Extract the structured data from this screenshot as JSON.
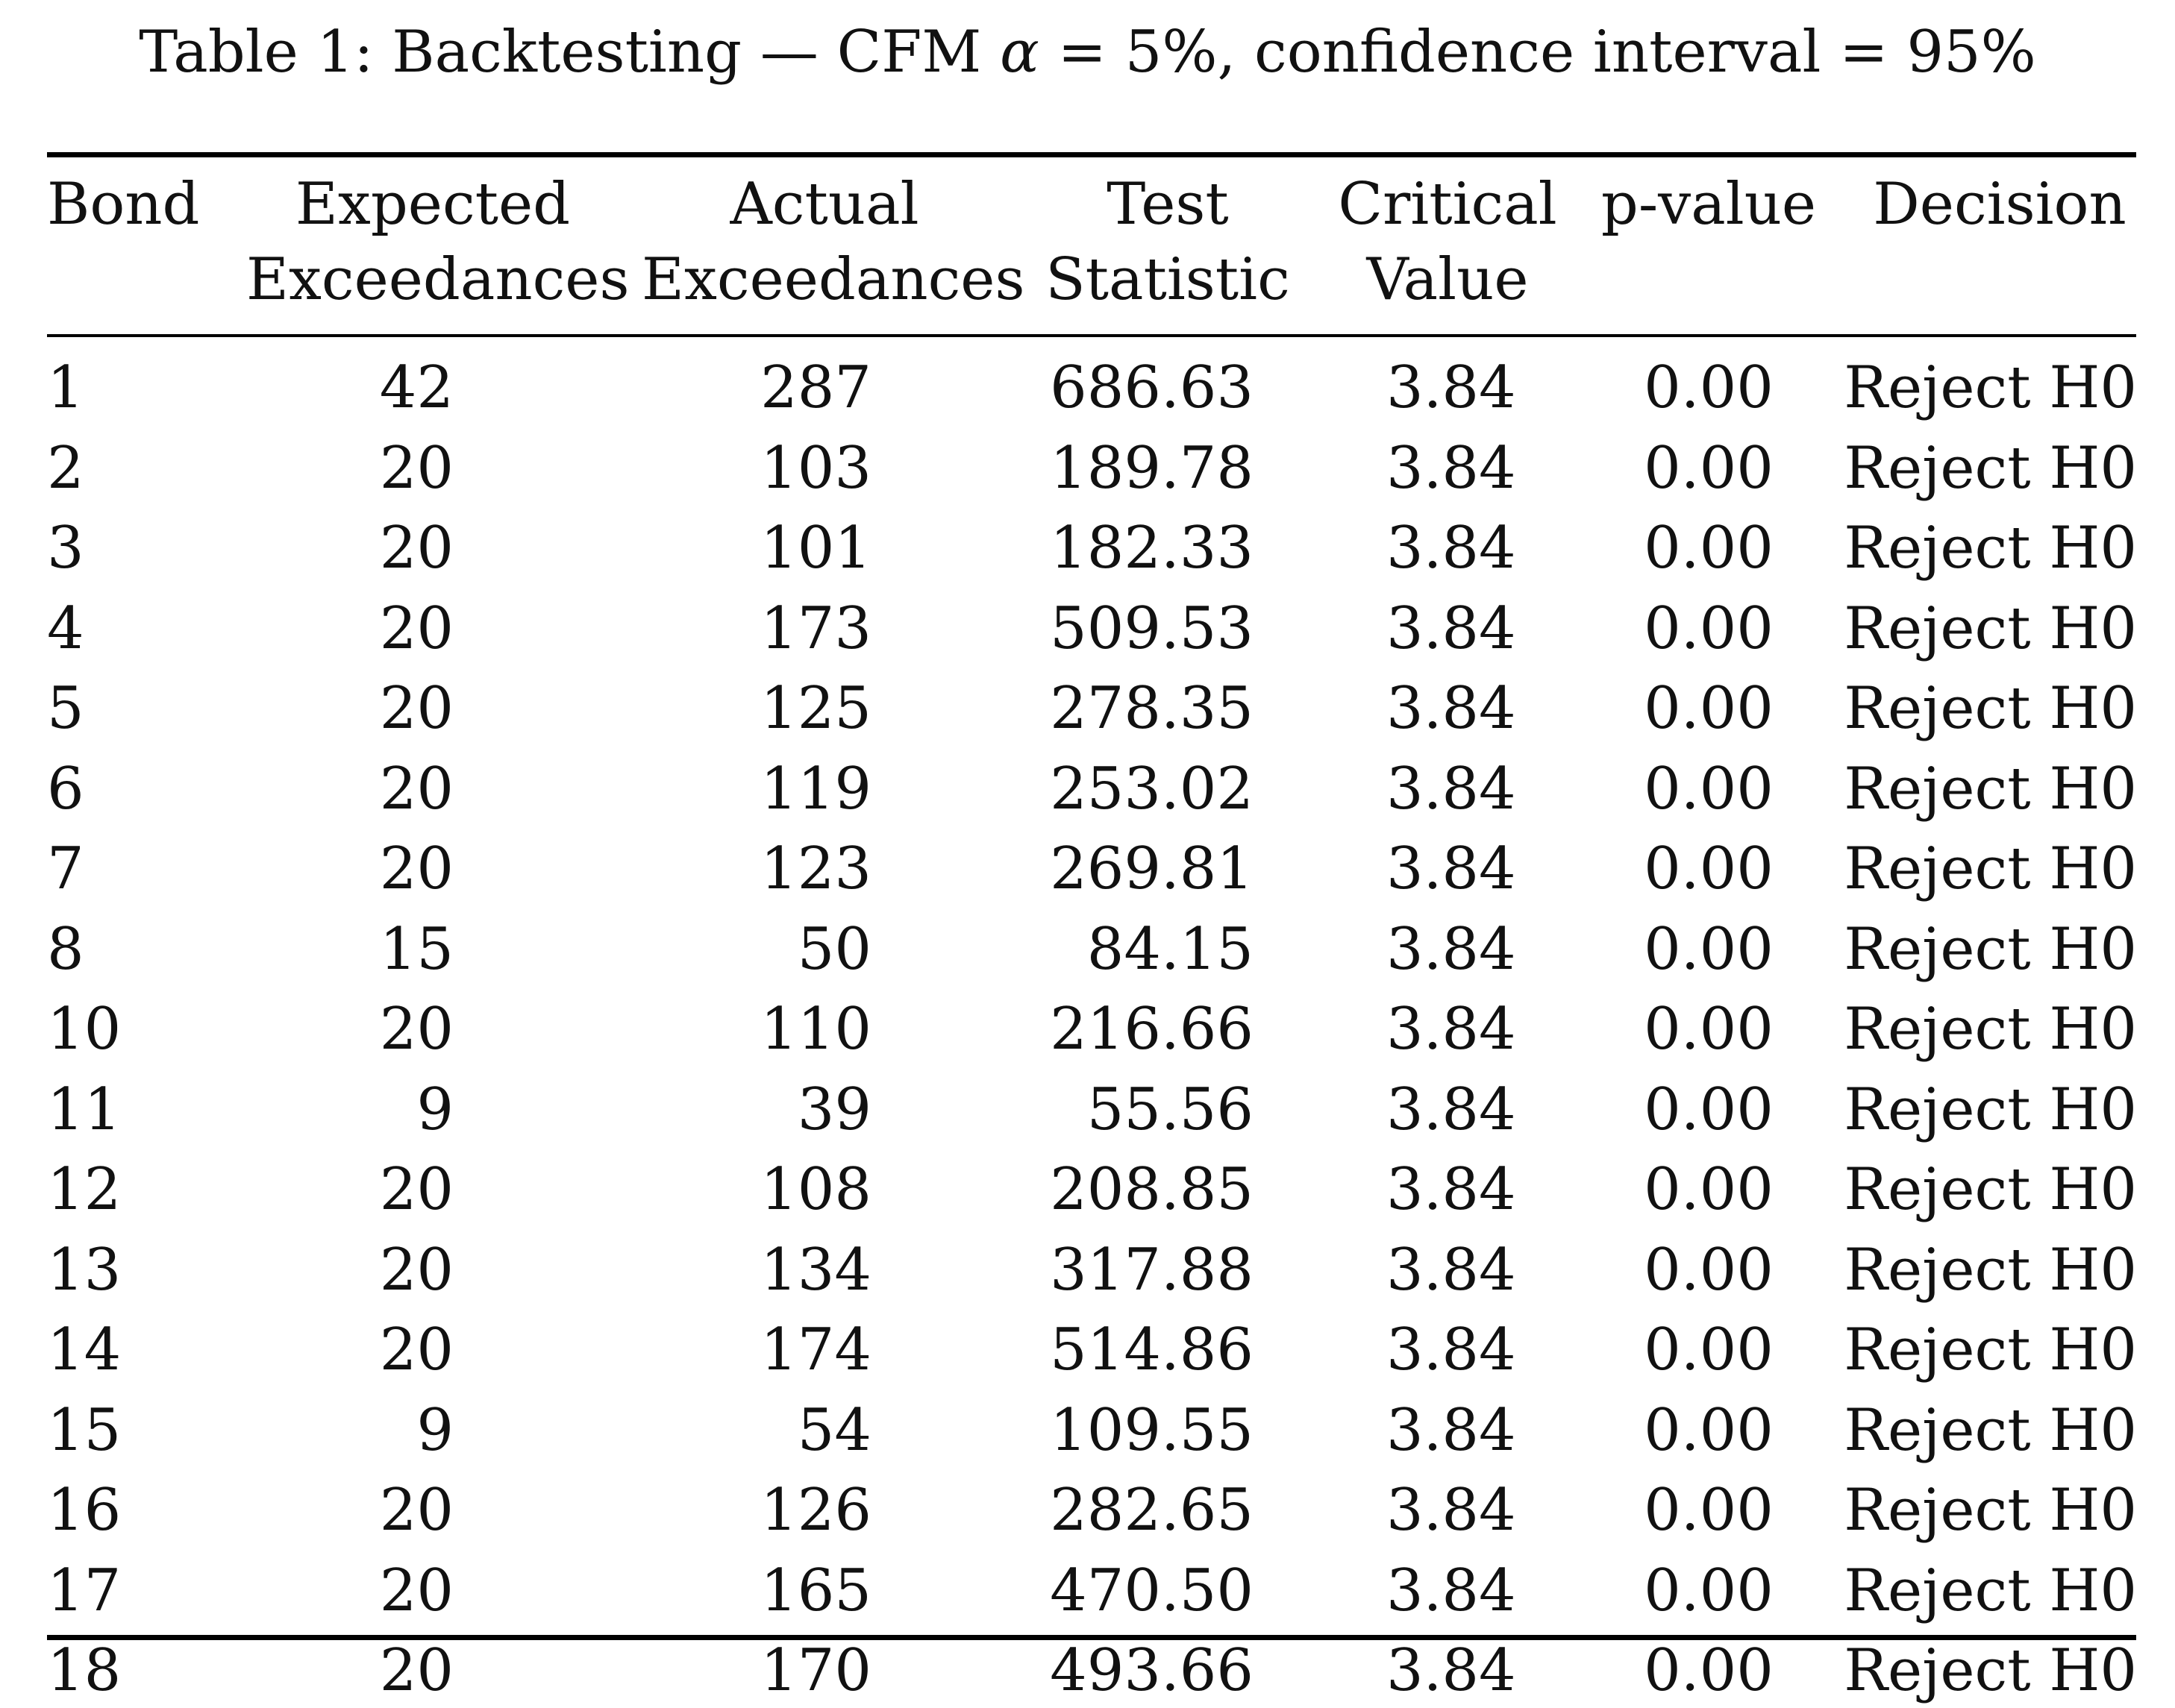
{
  "caption": {
    "prefix": "Table 1: Backtesting — CFM ",
    "alpha_symbol": "α",
    "suffix": " = 5%, confidence interval = 95%"
  },
  "table": {
    "columns": [
      {
        "line1": "Bond",
        "line2": ""
      },
      {
        "line1": "Expected",
        "line2": "Exceedances"
      },
      {
        "line1": "Actual",
        "line2": "Exceedances"
      },
      {
        "line1": "Test",
        "line2": "Statistic"
      },
      {
        "line1": "Critical",
        "line2": "Value"
      },
      {
        "line1": "p-value",
        "line2": ""
      },
      {
        "line1": "Decision",
        "line2": ""
      }
    ],
    "rows": [
      {
        "bond": "1",
        "expected": "42",
        "actual": "287",
        "stat": "686.63",
        "critical": "3.84",
        "p": "0.00",
        "decision": "Reject H0"
      },
      {
        "bond": "2",
        "expected": "20",
        "actual": "103",
        "stat": "189.78",
        "critical": "3.84",
        "p": "0.00",
        "decision": "Reject H0"
      },
      {
        "bond": "3",
        "expected": "20",
        "actual": "101",
        "stat": "182.33",
        "critical": "3.84",
        "p": "0.00",
        "decision": "Reject H0"
      },
      {
        "bond": "4",
        "expected": "20",
        "actual": "173",
        "stat": "509.53",
        "critical": "3.84",
        "p": "0.00",
        "decision": "Reject H0"
      },
      {
        "bond": "5",
        "expected": "20",
        "actual": "125",
        "stat": "278.35",
        "critical": "3.84",
        "p": "0.00",
        "decision": "Reject H0"
      },
      {
        "bond": "6",
        "expected": "20",
        "actual": "119",
        "stat": "253.02",
        "critical": "3.84",
        "p": "0.00",
        "decision": "Reject H0"
      },
      {
        "bond": "7",
        "expected": "20",
        "actual": "123",
        "stat": "269.81",
        "critical": "3.84",
        "p": "0.00",
        "decision": "Reject H0"
      },
      {
        "bond": "8",
        "expected": "15",
        "actual": "50",
        "stat": "84.15",
        "critical": "3.84",
        "p": "0.00",
        "decision": "Reject H0"
      },
      {
        "bond": "10",
        "expected": "20",
        "actual": "110",
        "stat": "216.66",
        "critical": "3.84",
        "p": "0.00",
        "decision": "Reject H0"
      },
      {
        "bond": "11",
        "expected": "9",
        "actual": "39",
        "stat": "55.56",
        "critical": "3.84",
        "p": "0.00",
        "decision": "Reject H0"
      },
      {
        "bond": "12",
        "expected": "20",
        "actual": "108",
        "stat": "208.85",
        "critical": "3.84",
        "p": "0.00",
        "decision": "Reject H0"
      },
      {
        "bond": "13",
        "expected": "20",
        "actual": "134",
        "stat": "317.88",
        "critical": "3.84",
        "p": "0.00",
        "decision": "Reject H0"
      },
      {
        "bond": "14",
        "expected": "20",
        "actual": "174",
        "stat": "514.86",
        "critical": "3.84",
        "p": "0.00",
        "decision": "Reject H0"
      },
      {
        "bond": "15",
        "expected": "9",
        "actual": "54",
        "stat": "109.55",
        "critical": "3.84",
        "p": "0.00",
        "decision": "Reject H0"
      },
      {
        "bond": "16",
        "expected": "20",
        "actual": "126",
        "stat": "282.65",
        "critical": "3.84",
        "p": "0.00",
        "decision": "Reject H0"
      },
      {
        "bond": "17",
        "expected": "20",
        "actual": "165",
        "stat": "470.50",
        "critical": "3.84",
        "p": "0.00",
        "decision": "Reject H0"
      },
      {
        "bond": "18",
        "expected": "20",
        "actual": "170",
        "stat": "493.66",
        "critical": "3.84",
        "p": "0.00",
        "decision": "Reject H0"
      }
    ]
  }
}
